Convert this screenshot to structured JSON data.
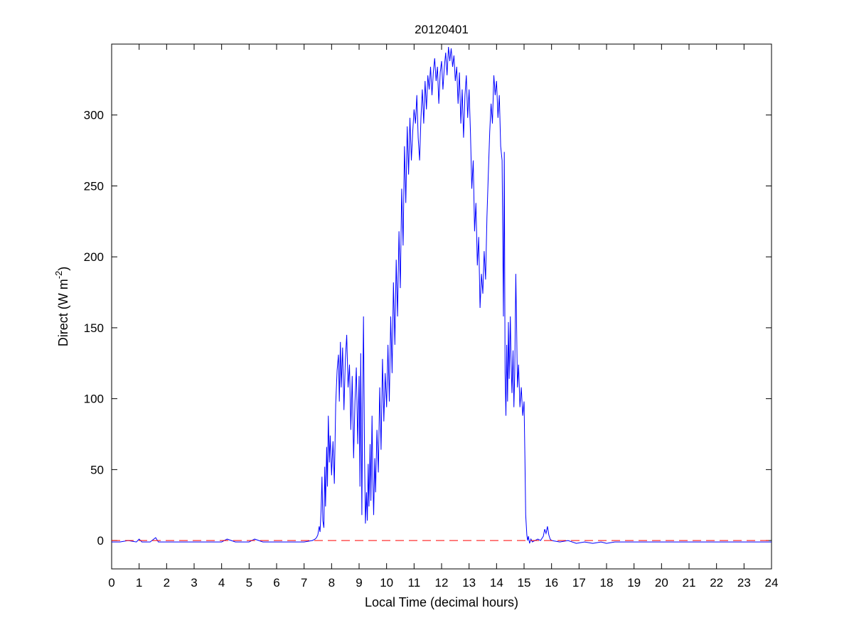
{
  "figure": {
    "background": "#ffffff"
  },
  "chart_data": {
    "type": "line",
    "title": "20120401",
    "xlabel": "Local Time (decimal hours)",
    "ylabel": "Direct (W m-2)",
    "ylabel_parts": {
      "base": "Direct (W m",
      "sup": "-2",
      "close": ")"
    },
    "xlim": [
      0,
      24
    ],
    "ylim": [
      -20,
      350
    ],
    "xticks": [
      0,
      1,
      2,
      3,
      4,
      5,
      6,
      7,
      8,
      9,
      10,
      11,
      12,
      13,
      14,
      15,
      16,
      17,
      18,
      19,
      20,
      21,
      22,
      23,
      24
    ],
    "yticks": [
      0,
      50,
      100,
      150,
      200,
      250,
      300
    ],
    "grid": false,
    "legend": null,
    "colors": {
      "data_line": "#0000ff",
      "zero_line": "#ff0000",
      "axis": "#000000"
    },
    "series": [
      {
        "name": "direct-irradiance",
        "color": "#0000ff",
        "style": "solid",
        "points": [
          [
            0,
            -1
          ],
          [
            0.3,
            -1
          ],
          [
            0.6,
            0
          ],
          [
            0.9,
            -1
          ],
          [
            1.0,
            1
          ],
          [
            1.1,
            -1
          ],
          [
            1.4,
            -1
          ],
          [
            1.6,
            2
          ],
          [
            1.7,
            -1
          ],
          [
            2.0,
            -1
          ],
          [
            2.5,
            -1
          ],
          [
            3.0,
            -1
          ],
          [
            3.5,
            -1
          ],
          [
            4.0,
            -1
          ],
          [
            4.2,
            1
          ],
          [
            4.5,
            -1
          ],
          [
            5.0,
            -1
          ],
          [
            5.2,
            1
          ],
          [
            5.5,
            -1
          ],
          [
            6.0,
            -1
          ],
          [
            6.5,
            -1
          ],
          [
            7.0,
            -1
          ],
          [
            7.3,
            0
          ],
          [
            7.4,
            1
          ],
          [
            7.45,
            2
          ],
          [
            7.5,
            4
          ],
          [
            7.55,
            10
          ],
          [
            7.58,
            6
          ],
          [
            7.62,
            22
          ],
          [
            7.65,
            45
          ],
          [
            7.68,
            14
          ],
          [
            7.72,
            9
          ],
          [
            7.75,
            52
          ],
          [
            7.78,
            24
          ],
          [
            7.82,
            66
          ],
          [
            7.85,
            38
          ],
          [
            7.88,
            88
          ],
          [
            7.92,
            55
          ],
          [
            7.95,
            74
          ],
          [
            8.0,
            46
          ],
          [
            8.05,
            70
          ],
          [
            8.1,
            40
          ],
          [
            8.15,
            96
          ],
          [
            8.2,
            120
          ],
          [
            8.25,
            131
          ],
          [
            8.28,
            98
          ],
          [
            8.32,
            140
          ],
          [
            8.35,
            108
          ],
          [
            8.4,
            136
          ],
          [
            8.45,
            92
          ],
          [
            8.5,
            128
          ],
          [
            8.55,
            145
          ],
          [
            8.6,
            108
          ],
          [
            8.65,
            124
          ],
          [
            8.7,
            78
          ],
          [
            8.75,
            116
          ],
          [
            8.8,
            58
          ],
          [
            8.85,
            98
          ],
          [
            8.9,
            122
          ],
          [
            8.95,
            68
          ],
          [
            9.0,
            116
          ],
          [
            9.03,
            38
          ],
          [
            9.06,
            132
          ],
          [
            9.1,
            18
          ],
          [
            9.13,
            96
          ],
          [
            9.16,
            158
          ],
          [
            9.2,
            58
          ],
          [
            9.23,
            12
          ],
          [
            9.27,
            34
          ],
          [
            9.3,
            14
          ],
          [
            9.33,
            54
          ],
          [
            9.36,
            24
          ],
          [
            9.4,
            68
          ],
          [
            9.43,
            28
          ],
          [
            9.47,
            88
          ],
          [
            9.5,
            44
          ],
          [
            9.53,
            18
          ],
          [
            9.57,
            58
          ],
          [
            9.6,
            34
          ],
          [
            9.65,
            78
          ],
          [
            9.7,
            48
          ],
          [
            9.75,
            108
          ],
          [
            9.8,
            64
          ],
          [
            9.85,
            128
          ],
          [
            9.9,
            84
          ],
          [
            9.95,
            118
          ],
          [
            10.0,
            94
          ],
          [
            10.05,
            138
          ],
          [
            10.1,
            98
          ],
          [
            10.15,
            158
          ],
          [
            10.2,
            118
          ],
          [
            10.25,
            182
          ],
          [
            10.3,
            138
          ],
          [
            10.35,
            198
          ],
          [
            10.4,
            158
          ],
          [
            10.45,
            218
          ],
          [
            10.5,
            178
          ],
          [
            10.55,
            248
          ],
          [
            10.6,
            208
          ],
          [
            10.65,
            278
          ],
          [
            10.7,
            238
          ],
          [
            10.75,
            292
          ],
          [
            10.8,
            258
          ],
          [
            10.85,
            298
          ],
          [
            10.9,
            268
          ],
          [
            10.95,
            288
          ],
          [
            11.0,
            304
          ],
          [
            11.05,
            294
          ],
          [
            11.1,
            314
          ],
          [
            11.15,
            284
          ],
          [
            11.2,
            268
          ],
          [
            11.25,
            298
          ],
          [
            11.3,
            318
          ],
          [
            11.35,
            294
          ],
          [
            11.4,
            324
          ],
          [
            11.45,
            304
          ],
          [
            11.5,
            328
          ],
          [
            11.55,
            318
          ],
          [
            11.6,
            334
          ],
          [
            11.65,
            314
          ],
          [
            11.7,
            330
          ],
          [
            11.75,
            340
          ],
          [
            11.8,
            324
          ],
          [
            11.85,
            334
          ],
          [
            11.9,
            308
          ],
          [
            11.95,
            330
          ],
          [
            12.0,
            338
          ],
          [
            12.05,
            318
          ],
          [
            12.1,
            334
          ],
          [
            12.15,
            344
          ],
          [
            12.2,
            328
          ],
          [
            12.25,
            348
          ],
          [
            12.3,
            338
          ],
          [
            12.35,
            347
          ],
          [
            12.4,
            334
          ],
          [
            12.45,
            342
          ],
          [
            12.5,
            324
          ],
          [
            12.55,
            334
          ],
          [
            12.6,
            308
          ],
          [
            12.65,
            330
          ],
          [
            12.7,
            294
          ],
          [
            12.75,
            318
          ],
          [
            12.8,
            284
          ],
          [
            12.85,
            314
          ],
          [
            12.9,
            328
          ],
          [
            12.95,
            298
          ],
          [
            13.0,
            318
          ],
          [
            13.05,
            288
          ],
          [
            13.1,
            248
          ],
          [
            13.15,
            268
          ],
          [
            13.2,
            218
          ],
          [
            13.25,
            238
          ],
          [
            13.3,
            194
          ],
          [
            13.35,
            214
          ],
          [
            13.4,
            164
          ],
          [
            13.45,
            188
          ],
          [
            13.5,
            174
          ],
          [
            13.55,
            204
          ],
          [
            13.6,
            184
          ],
          [
            13.65,
            228
          ],
          [
            13.7,
            258
          ],
          [
            13.75,
            288
          ],
          [
            13.8,
            308
          ],
          [
            13.85,
            294
          ],
          [
            13.9,
            328
          ],
          [
            13.95,
            314
          ],
          [
            14.0,
            324
          ],
          [
            14.05,
            298
          ],
          [
            14.1,
            314
          ],
          [
            14.15,
            278
          ],
          [
            14.2,
            268
          ],
          [
            14.25,
            158
          ],
          [
            14.28,
            274
          ],
          [
            14.31,
            118
          ],
          [
            14.34,
            88
          ],
          [
            14.37,
            138
          ],
          [
            14.4,
            98
          ],
          [
            14.43,
            154
          ],
          [
            14.46,
            114
          ],
          [
            14.5,
            158
          ],
          [
            14.53,
            124
          ],
          [
            14.56,
            104
          ],
          [
            14.6,
            134
          ],
          [
            14.63,
            94
          ],
          [
            14.66,
            118
          ],
          [
            14.7,
            188
          ],
          [
            14.73,
            148
          ],
          [
            14.76,
            108
          ],
          [
            14.8,
            124
          ],
          [
            14.85,
            94
          ],
          [
            14.9,
            108
          ],
          [
            14.95,
            88
          ],
          [
            15.0,
            98
          ],
          [
            15.03,
            58
          ],
          [
            15.06,
            18
          ],
          [
            15.1,
            4
          ],
          [
            15.13,
            0
          ],
          [
            15.16,
            3
          ],
          [
            15.2,
            -2
          ],
          [
            15.25,
            1
          ],
          [
            15.3,
            -1
          ],
          [
            15.4,
            0
          ],
          [
            15.5,
            1
          ],
          [
            15.6,
            0
          ],
          [
            15.7,
            3
          ],
          [
            15.75,
            8
          ],
          [
            15.8,
            5
          ],
          [
            15.85,
            10
          ],
          [
            15.9,
            4
          ],
          [
            15.95,
            1
          ],
          [
            16.0,
            0
          ],
          [
            16.3,
            -1
          ],
          [
            16.6,
            0
          ],
          [
            16.9,
            -2
          ],
          [
            17.2,
            -1
          ],
          [
            17.5,
            -2
          ],
          [
            17.8,
            -1
          ],
          [
            18.0,
            -2
          ],
          [
            18.3,
            -1
          ],
          [
            18.6,
            -1
          ],
          [
            19.0,
            -1
          ],
          [
            19.5,
            -1
          ],
          [
            20.0,
            -1
          ],
          [
            20.5,
            -1
          ],
          [
            21.0,
            -1
          ],
          [
            21.5,
            -1
          ],
          [
            22.0,
            -1
          ],
          [
            22.5,
            -1
          ],
          [
            23.0,
            -1
          ],
          [
            23.5,
            -1
          ],
          [
            24.0,
            -1
          ]
        ]
      },
      {
        "name": "zero-reference-line",
        "color": "#ff0000",
        "style": "dashed",
        "points": [
          [
            0,
            0
          ],
          [
            24,
            0
          ]
        ]
      }
    ]
  }
}
